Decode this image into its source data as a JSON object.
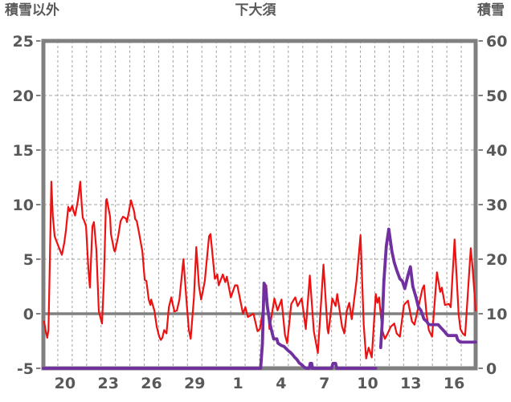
{
  "page": {
    "background": "#ffffff"
  },
  "chart_data": {
    "type": "line",
    "title": "下大須",
    "left_axis": {
      "title": "積雪以外",
      "min": -5,
      "max": 25,
      "ticks": [
        25,
        20,
        15,
        10,
        5,
        0,
        -5
      ]
    },
    "right_axis": {
      "title": "積雪",
      "min": 0,
      "max": 60,
      "ticks": [
        60,
        50,
        40,
        30,
        20,
        10,
        0
      ]
    },
    "x_axis": {
      "span_days": 30,
      "grid_every_days": 1,
      "labels": [
        {
          "text": "20",
          "center": 1.5
        },
        {
          "text": "23",
          "center": 4.5
        },
        {
          "text": "26",
          "center": 7.5
        },
        {
          "text": "29",
          "center": 10.5
        },
        {
          "text": "1",
          "center": 13.5
        },
        {
          "text": "4",
          "center": 16.5
        },
        {
          "text": "7",
          "center": 19.5
        },
        {
          "text": "10",
          "center": 22.5
        },
        {
          "text": "13",
          "center": 25.5
        },
        {
          "text": "16",
          "center": 28.5
        }
      ]
    },
    "grid": {
      "h_dashed_at": [
        5,
        10,
        15,
        20
      ],
      "zero_line_at": 0,
      "grid_color": "#a3a3a3",
      "axis_color": "#808080",
      "label_color": "#595959"
    },
    "series": [
      {
        "name": "積雪以外",
        "axis": "left",
        "color": "#ee1111",
        "width": 2.2,
        "segments": [
          [
            [
              0.05,
              -0.7
            ],
            [
              0.15,
              -1.5
            ],
            [
              0.27,
              -2.2
            ],
            [
              0.35,
              -1.5
            ],
            [
              0.45,
              5.0
            ],
            [
              0.55,
              12.1
            ],
            [
              0.65,
              9.0
            ],
            [
              0.78,
              7.1
            ],
            [
              0.89,
              6.7
            ],
            [
              1.1,
              6.0
            ],
            [
              1.28,
              5.4
            ],
            [
              1.45,
              6.5
            ],
            [
              1.56,
              7.6
            ],
            [
              1.73,
              9.8
            ],
            [
              1.84,
              9.4
            ],
            [
              2.0,
              9.9
            ],
            [
              2.12,
              9.3
            ],
            [
              2.2,
              9.0
            ],
            [
              2.4,
              10.4
            ],
            [
              2.56,
              12.1
            ],
            [
              2.66,
              10.0
            ],
            [
              2.73,
              8.8
            ],
            [
              2.84,
              8.5
            ],
            [
              2.96,
              8.0
            ],
            [
              3.12,
              4.1
            ],
            [
              3.23,
              2.4
            ],
            [
              3.4,
              8.0
            ],
            [
              3.51,
              8.4
            ],
            [
              3.68,
              5.8
            ],
            [
              3.85,
              0.2
            ],
            [
              4.07,
              -0.9
            ],
            [
              4.2,
              3.0
            ],
            [
              4.35,
              10.4
            ],
            [
              4.4,
              10.5
            ],
            [
              4.63,
              8.9
            ],
            [
              4.69,
              7.3
            ],
            [
              4.91,
              5.8
            ],
            [
              4.97,
              5.7
            ],
            [
              5.19,
              7.1
            ],
            [
              5.36,
              8.5
            ],
            [
              5.53,
              8.9
            ],
            [
              5.75,
              8.7
            ],
            [
              5.8,
              8.4
            ],
            [
              6.08,
              10.4
            ],
            [
              6.31,
              9.3
            ],
            [
              6.36,
              8.7
            ],
            [
              6.48,
              8.5
            ],
            [
              6.64,
              7.4
            ],
            [
              6.87,
              5.7
            ],
            [
              7.03,
              3.1
            ],
            [
              7.15,
              3.0
            ],
            [
              7.31,
              1.3
            ],
            [
              7.43,
              0.8
            ],
            [
              7.48,
              1.3
            ],
            [
              7.7,
              0.3
            ],
            [
              7.87,
              -1.2
            ],
            [
              8.04,
              -2.1
            ],
            [
              8.15,
              -2.4
            ],
            [
              8.26,
              -2.2
            ],
            [
              8.38,
              -1.5
            ],
            [
              8.54,
              -1.8
            ],
            [
              8.71,
              0.6
            ],
            [
              8.88,
              1.5
            ],
            [
              8.99,
              0.8
            ],
            [
              9.1,
              0.2
            ],
            [
              9.27,
              0.3
            ],
            [
              9.44,
              1.3
            ],
            [
              9.72,
              5.0
            ],
            [
              9.94,
              1.0
            ],
            [
              10.1,
              -1.5
            ],
            [
              10.22,
              -2.3
            ],
            [
              10.45,
              1.5
            ],
            [
              10.61,
              6.1
            ],
            [
              10.8,
              2.5
            ],
            [
              10.95,
              1.3
            ],
            [
              11.2,
              3.0
            ],
            [
              11.5,
              7.1
            ],
            [
              11.6,
              7.3
            ],
            [
              11.9,
              3.2
            ],
            [
              12.07,
              3.6
            ],
            [
              12.17,
              2.6
            ],
            [
              12.45,
              3.6
            ],
            [
              12.62,
              2.9
            ],
            [
              12.73,
              3.4
            ],
            [
              13.01,
              1.5
            ],
            [
              13.3,
              2.6
            ],
            [
              13.46,
              2.6
            ],
            [
              13.85,
              0.0
            ],
            [
              14.02,
              0.6
            ],
            [
              14.19,
              -0.3
            ],
            [
              14.58,
              0.0
            ],
            [
              14.86,
              -1.6
            ],
            [
              15.03,
              -1.4
            ],
            [
              15.25,
              0.5
            ],
            [
              15.47,
              2.6
            ],
            [
              15.69,
              -1.4
            ],
            [
              16.03,
              1.4
            ],
            [
              16.25,
              0.3
            ],
            [
              16.53,
              1.3
            ],
            [
              16.76,
              -1.9
            ],
            [
              16.92,
              -2.7
            ],
            [
              17.2,
              0.9
            ],
            [
              17.48,
              1.5
            ],
            [
              17.65,
              0.7
            ],
            [
              17.93,
              1.4
            ],
            [
              18.21,
              -1.4
            ],
            [
              18.49,
              3.5
            ],
            [
              18.77,
              -1.6
            ],
            [
              19.05,
              -3.6
            ],
            [
              19.44,
              4.5
            ],
            [
              19.72,
              -1.4
            ],
            [
              19.78,
              -1.8
            ],
            [
              20.05,
              1.4
            ],
            [
              20.28,
              0.7
            ],
            [
              20.39,
              1.8
            ],
            [
              20.73,
              -1.2
            ],
            [
              20.89,
              -1.8
            ],
            [
              21.06,
              0.3
            ],
            [
              21.23,
              1.0
            ],
            [
              21.4,
              -0.5
            ],
            [
              21.73,
              3.0
            ],
            [
              22.01,
              7.2
            ],
            [
              22.23,
              -1.0
            ],
            [
              22.4,
              -4.1
            ],
            [
              22.57,
              -3.1
            ],
            [
              22.79,
              -4.0
            ],
            [
              23.07,
              1.8
            ],
            [
              23.18,
              1.0
            ],
            [
              23.3,
              1.5
            ],
            [
              23.52,
              -1.5
            ],
            [
              23.7,
              -2.3
            ],
            [
              23.9,
              -1.8
            ],
            [
              24.1,
              -1.2
            ],
            [
              24.35,
              -0.9
            ],
            [
              24.52,
              -1.8
            ],
            [
              24.74,
              -2.1
            ],
            [
              25.02,
              0.8
            ],
            [
              25.3,
              1.2
            ],
            [
              25.58,
              -0.7
            ],
            [
              25.75,
              -1.0
            ],
            [
              26.14,
              1.3
            ],
            [
              26.31,
              2.3
            ],
            [
              26.42,
              2.6
            ],
            [
              26.59,
              0.0
            ],
            [
              26.75,
              -1.5
            ],
            [
              26.98,
              -2.1
            ],
            [
              27.31,
              3.8
            ],
            [
              27.54,
              2.0
            ],
            [
              27.65,
              2.4
            ],
            [
              27.87,
              0.8
            ],
            [
              28.15,
              0.9
            ],
            [
              28.27,
              0.6
            ],
            [
              28.54,
              6.8
            ],
            [
              28.82,
              0.0
            ],
            [
              28.94,
              -1.4
            ],
            [
              29.1,
              -1.8
            ],
            [
              29.27,
              -2.0
            ],
            [
              29.66,
              6.0
            ],
            [
              29.8,
              4.0
            ],
            [
              29.94,
              1.5
            ],
            [
              30.0,
              0.3
            ]
          ]
        ]
      },
      {
        "name": "積雪",
        "axis": "right",
        "color": "#7030a0",
        "width": 3.8,
        "segments": [
          [
            [
              0.0,
              0
            ],
            [
              15.08,
              0
            ],
            [
              15.2,
              4.5
            ],
            [
              15.31,
              15.6
            ],
            [
              15.42,
              15.0
            ],
            [
              15.53,
              11.6
            ],
            [
              15.7,
              8.5
            ],
            [
              15.81,
              7.2
            ],
            [
              15.98,
              5.4
            ],
            [
              16.2,
              5.4
            ],
            [
              16.28,
              4.6
            ],
            [
              16.5,
              4.2
            ],
            [
              16.7,
              4.0
            ],
            [
              16.85,
              3.6
            ],
            [
              17.0,
              3.2
            ],
            [
              17.15,
              2.9
            ],
            [
              17.3,
              2.5
            ],
            [
              17.45,
              2.0
            ],
            [
              17.6,
              1.6
            ],
            [
              17.75,
              1.0
            ],
            [
              17.95,
              0.6
            ],
            [
              18.1,
              0.2
            ],
            [
              18.25,
              0
            ],
            [
              18.45,
              0
            ],
            [
              18.52,
              0.9
            ],
            [
              18.62,
              0.9
            ],
            [
              18.68,
              0
            ],
            [
              20.0,
              0
            ],
            [
              20.1,
              0.9
            ],
            [
              20.28,
              0.9
            ],
            [
              20.36,
              0
            ],
            [
              23.07,
              0
            ]
          ],
          [
            [
              23.41,
              3.8
            ],
            [
              23.52,
              8.6
            ],
            [
              23.63,
              16.0
            ],
            [
              23.8,
              22.4
            ],
            [
              23.97,
              25.5
            ],
            [
              24.19,
              21.4
            ],
            [
              24.35,
              19.4
            ],
            [
              24.52,
              18.0
            ],
            [
              24.74,
              16.4
            ],
            [
              24.91,
              16.0
            ],
            [
              25.08,
              14.6
            ],
            [
              25.3,
              17.0
            ],
            [
              25.47,
              18.6
            ],
            [
              25.64,
              15.0
            ],
            [
              25.86,
              13.0
            ],
            [
              26.03,
              11.2
            ],
            [
              26.2,
              10.6
            ],
            [
              26.42,
              9.0
            ],
            [
              26.6,
              8.6
            ],
            [
              26.75,
              8.0
            ],
            [
              27.4,
              8.0
            ],
            [
              27.6,
              7.4
            ],
            [
              27.82,
              6.8
            ],
            [
              28.0,
              6.2
            ],
            [
              28.1,
              6.0
            ],
            [
              28.66,
              6.0
            ],
            [
              28.75,
              5.2
            ],
            [
              28.94,
              4.8
            ],
            [
              30.0,
              4.8
            ]
          ]
        ]
      }
    ]
  }
}
